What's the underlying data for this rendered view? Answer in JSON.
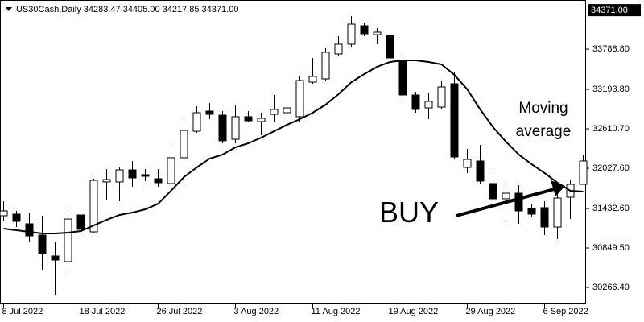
{
  "chart_data": {
    "type": "candlestick",
    "title": "US30Cash,Daily  34283.47 34405.00 34217.85 34371.00",
    "categories": [
      "8 Jul 2022",
      null,
      null,
      null,
      null,
      null,
      "18 Jul 2022",
      null,
      null,
      null,
      null,
      null,
      "26 Jul 2022",
      null,
      null,
      null,
      null,
      null,
      "3 Aug 2022",
      null,
      null,
      null,
      null,
      null,
      "11 Aug 2022",
      null,
      null,
      null,
      null,
      null,
      "19 Aug 2022",
      null,
      null,
      null,
      null,
      null,
      "29 Aug 2022",
      null,
      null,
      null,
      null,
      null,
      "6 Sep 2022",
      null,
      null,
      null
    ],
    "open": [
      31326,
      31350,
      31207,
      31040,
      30731,
      30648,
      31338,
      31088,
      31826,
      31826,
      32004,
      31933,
      31873,
      31802,
      32183,
      32575,
      32873,
      32813,
      32456,
      32790,
      32718,
      32825,
      32849,
      32790,
      33301,
      33349,
      33718,
      33861,
      34134,
      34003,
      33991,
      33623,
      33111,
      32920,
      32932,
      33277,
      32040,
      32135,
      31802,
      31576,
      31659,
      31433,
      31445,
      31159,
      31600,
      31790
    ],
    "high": [
      31540,
      31397,
      31362,
      31326,
      30945,
      31397,
      31659,
      31873,
      32016,
      32040,
      32135,
      32016,
      32016,
      32373,
      32790,
      32944,
      32992,
      32873,
      32968,
      32873,
      32849,
      33111,
      32992,
      33385,
      33658,
      33801,
      33980,
      34277,
      34182,
      34099,
      34003,
      33682,
      33158,
      33146,
      33325,
      33444,
      32314,
      32373,
      32016,
      31838,
      31778,
      31504,
      31540,
      31659,
      31849,
      32218
    ],
    "low": [
      31243,
      31159,
      30945,
      30529,
      30148,
      30493,
      31040,
      31064,
      31564,
      31540,
      31754,
      31838,
      31754,
      31778,
      32159,
      32552,
      32754,
      32397,
      32397,
      32706,
      32516,
      32706,
      32766,
      32706,
      33277,
      33325,
      33682,
      33825,
      33980,
      33861,
      33623,
      33063,
      32849,
      32754,
      32897,
      32159,
      31957,
      31802,
      31540,
      31207,
      31207,
      31302,
      31040,
      30981,
      31278,
      31790
    ],
    "close": [
      31397,
      31243,
      31028,
      30767,
      30671,
      31278,
      31124,
      31849,
      31861,
      32004,
      31885,
      31909,
      31814,
      32183,
      32587,
      32849,
      32825,
      32433,
      32790,
      32730,
      32766,
      32897,
      32920,
      33325,
      33385,
      33742,
      33861,
      34158,
      34015,
      34039,
      33658,
      33111,
      32897,
      33016,
      33230,
      32195,
      32159,
      31838,
      31576,
      31659,
      31397,
      31350,
      31159,
      31588,
      31790,
      32135
    ],
    "moving_average": [
      31136,
      31112,
      31088,
      31064,
      31064,
      31076,
      31100,
      31183,
      31266,
      31338,
      31373,
      31421,
      31504,
      31695,
      31897,
      32040,
      32171,
      32230,
      32337,
      32397,
      32480,
      32575,
      32670,
      32754,
      32849,
      32968,
      33123,
      33301,
      33420,
      33528,
      33599,
      33623,
      33623,
      33599,
      33563,
      33408,
      33194,
      32897,
      32635,
      32421,
      32230,
      32087,
      31957,
      31814,
      31695,
      31683
    ],
    "up_color": "#ffffff",
    "down_color": "#000000",
    "line_color": "#000000",
    "ylim": [
      30017,
      34515
    ],
    "yticks": [
      {
        "value": 30266.4,
        "label": "30266.40"
      },
      {
        "value": 30849.5,
        "label": "30849.50"
      },
      {
        "value": 31432.6,
        "label": "31432.60"
      },
      {
        "value": 32027.6,
        "label": "32027.60"
      },
      {
        "value": 32610.7,
        "label": "32610.70"
      },
      {
        "value": 33193.8,
        "label": "33193.80"
      },
      {
        "value": 33788.8,
        "label": "33788.80"
      }
    ],
    "price_tag": {
      "value": 34371,
      "label": "34371.00"
    },
    "annotations": [
      "Moving average",
      "BUY"
    ]
  }
}
